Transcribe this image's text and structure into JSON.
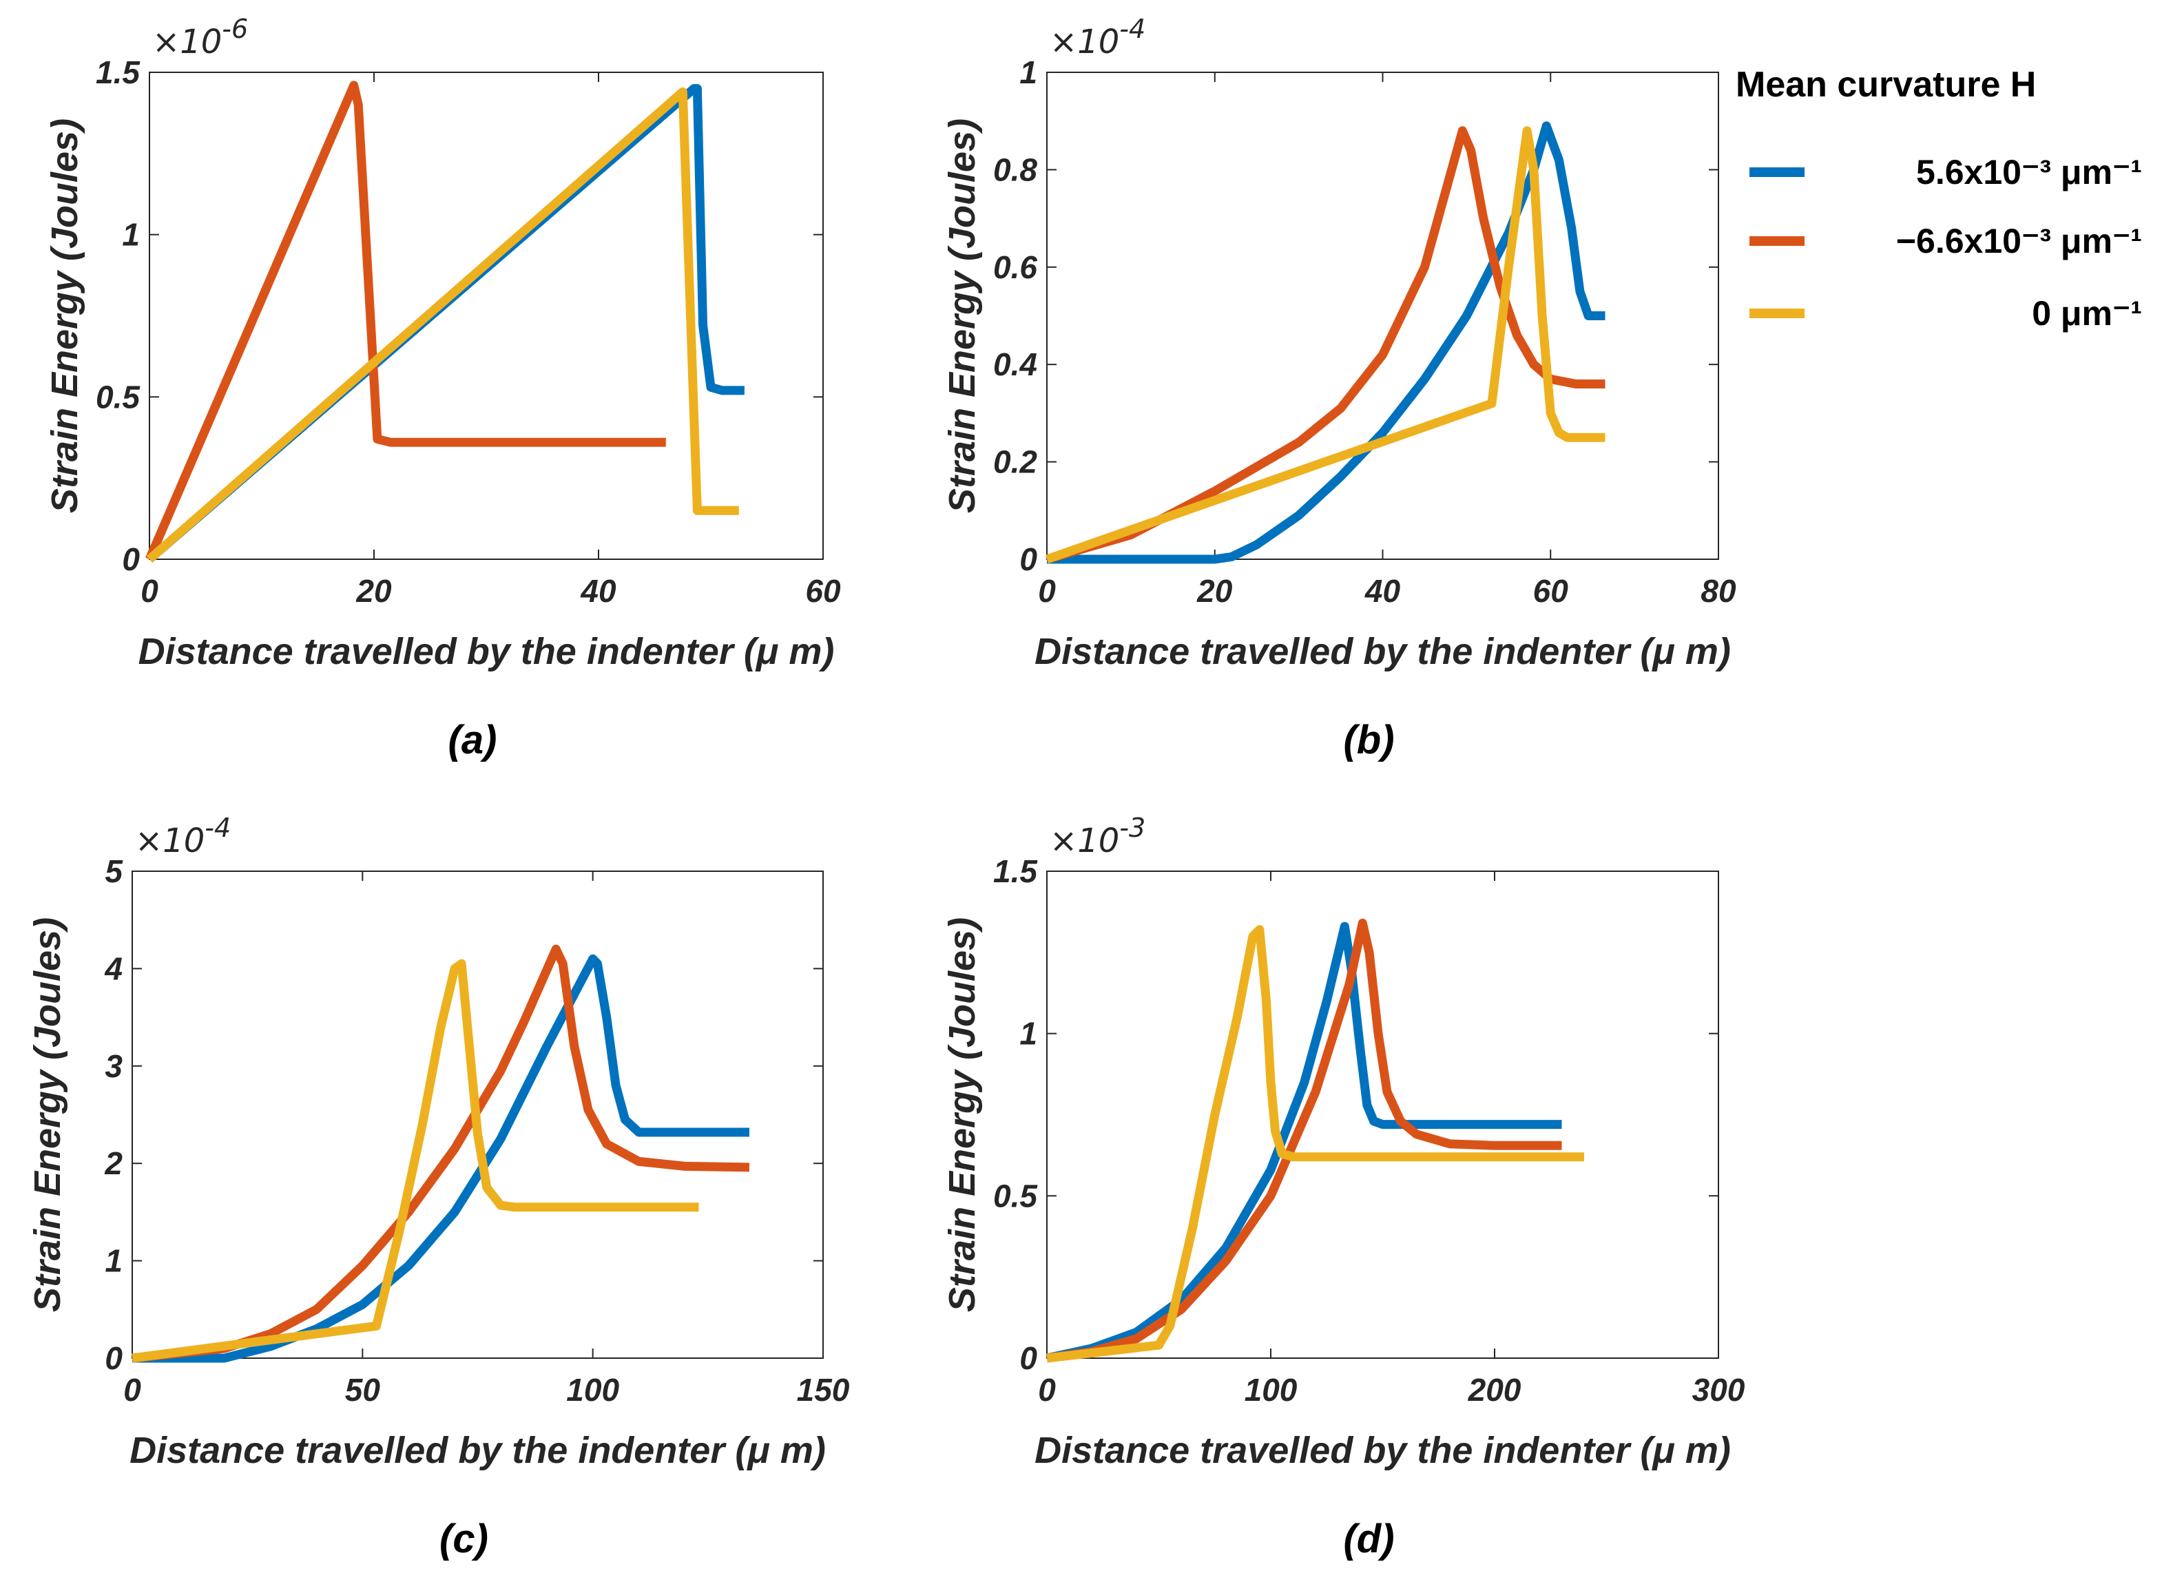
{
  "legend": {
    "title": "Mean curvature H",
    "entries": [
      {
        "label": "5.6x10⁻³ μm⁻¹",
        "color": "#0072BD"
      },
      {
        "label": "−6.6x10⁻³ μm⁻¹",
        "color": "#D95319"
      },
      {
        "label": "0 μm⁻¹",
        "color": "#EDB120"
      }
    ]
  },
  "chart_data": [
    {
      "type": "line",
      "caption": "(a)",
      "xlabel": "Distance travelled by the indenter (μ m)",
      "ylabel": "Strain Energy (Joules)",
      "multiplier": "×10",
      "multiplier_exp": "-6",
      "xlim": [
        0,
        60
      ],
      "ylim": [
        0,
        1.5
      ],
      "xticks": [
        0,
        20,
        40,
        60
      ],
      "yticks": [
        0,
        0.5,
        1,
        1.5
      ],
      "ytick_labels": [
        "0",
        "0.5",
        "1",
        "1.5"
      ],
      "series": [
        {
          "name": "5.6x10⁻³ μm⁻¹",
          "color": "#0072BD",
          "x": [
            0,
            48.5,
            48.8,
            49.3,
            50,
            51,
            53
          ],
          "y": [
            0,
            1.45,
            1.45,
            0.72,
            0.53,
            0.52,
            0.52
          ]
        },
        {
          "name": "−6.6x10⁻³ μm⁻¹",
          "color": "#D95319",
          "x": [
            0,
            18.2,
            18.6,
            20.3,
            21.5,
            46
          ],
          "y": [
            0,
            1.46,
            1.4,
            0.37,
            0.36,
            0.36
          ]
        },
        {
          "name": "0 μm⁻¹",
          "color": "#EDB120",
          "x": [
            0,
            47.5,
            48.5,
            48.8,
            52.5
          ],
          "y": [
            0,
            1.44,
            0.44,
            0.15,
            0.15
          ]
        }
      ]
    },
    {
      "type": "line",
      "caption": "(b)",
      "xlabel": "Distance travelled by the indenter (μ m)",
      "ylabel": "Strain Energy (Joules)",
      "multiplier": "×10",
      "multiplier_exp": "-4",
      "xlim": [
        0,
        80
      ],
      "ylim": [
        0,
        1
      ],
      "xticks": [
        0,
        20,
        40,
        60,
        80
      ],
      "yticks": [
        0,
        0.2,
        0.4,
        0.6,
        0.8,
        1
      ],
      "ytick_labels": [
        "0",
        "0.2",
        "0.4",
        "0.6",
        "0.8",
        "1"
      ],
      "series": [
        {
          "name": "5.6x10⁻³ μm⁻¹",
          "color": "#0072BD",
          "x": [
            0,
            20,
            22,
            25,
            30,
            35,
            40,
            45,
            50,
            55,
            58,
            59.5,
            61,
            62.5,
            63.5,
            64.5,
            66.5
          ],
          "y": [
            0,
            0,
            0.005,
            0.03,
            0.09,
            0.17,
            0.26,
            0.37,
            0.5,
            0.67,
            0.8,
            0.89,
            0.82,
            0.68,
            0.55,
            0.5,
            0.5
          ]
        },
        {
          "name": "−6.6x10⁻³ μm⁻¹",
          "color": "#D95319",
          "x": [
            0,
            10,
            20,
            30,
            35,
            40,
            45,
            49.5,
            50.5,
            52,
            54,
            56,
            58,
            60,
            63,
            66.5
          ],
          "y": [
            0,
            0.05,
            0.14,
            0.24,
            0.31,
            0.42,
            0.6,
            0.88,
            0.84,
            0.7,
            0.56,
            0.46,
            0.4,
            0.37,
            0.36,
            0.36
          ]
        },
        {
          "name": "0 μm⁻¹",
          "color": "#EDB120",
          "x": [
            0,
            53,
            55,
            57.2,
            58,
            59,
            60,
            61,
            62,
            66.5
          ],
          "y": [
            0,
            0.32,
            0.6,
            0.88,
            0.8,
            0.5,
            0.3,
            0.26,
            0.25,
            0.25
          ]
        }
      ]
    },
    {
      "type": "line",
      "caption": "(c)",
      "xlabel": "Distance travelled by the indenter (μ m)",
      "ylabel": "Strain Energy (Joules)",
      "multiplier": "×10",
      "multiplier_exp": "-4",
      "xlim": [
        0,
        150
      ],
      "ylim": [
        0,
        5
      ],
      "xticks": [
        0,
        50,
        100,
        150
      ],
      "yticks": [
        0,
        1,
        2,
        3,
        4,
        5
      ],
      "ytick_labels": [
        "0",
        "1",
        "2",
        "3",
        "4",
        "5"
      ],
      "series": [
        {
          "name": "5.6x10⁻³ μm⁻¹",
          "color": "#0072BD",
          "x": [
            0,
            20,
            30,
            40,
            50,
            60,
            70,
            80,
            90,
            100,
            101,
            103,
            105,
            107,
            110,
            134
          ],
          "y": [
            0,
            0,
            0.12,
            0.3,
            0.55,
            0.95,
            1.5,
            2.25,
            3.2,
            4.1,
            4.05,
            3.5,
            2.8,
            2.45,
            2.32,
            2.32
          ]
        },
        {
          "name": "−6.6x10⁻³ μm⁻¹",
          "color": "#D95319",
          "x": [
            0,
            20,
            30,
            40,
            50,
            60,
            70,
            80,
            85,
            92,
            93.5,
            96,
            99,
            103,
            110,
            120,
            134
          ],
          "y": [
            0,
            0.1,
            0.25,
            0.5,
            0.95,
            1.5,
            2.15,
            2.95,
            3.45,
            4.2,
            4.05,
            3.2,
            2.55,
            2.2,
            2.02,
            1.97,
            1.96
          ]
        },
        {
          "name": "0 μm⁻¹",
          "color": "#EDB120",
          "x": [
            0,
            53,
            58,
            63,
            67,
            70,
            71.5,
            73,
            75,
            77,
            80,
            83,
            123
          ],
          "y": [
            0,
            0.33,
            1.3,
            2.4,
            3.4,
            4.0,
            4.05,
            3.3,
            2.3,
            1.75,
            1.57,
            1.55,
            1.55
          ]
        }
      ]
    },
    {
      "type": "line",
      "caption": "(d)",
      "xlabel": "Distance travelled by the indenter (μ m)",
      "ylabel": "Strain Energy (Joules)",
      "multiplier": "×10",
      "multiplier_exp": "-3",
      "xlim": [
        0,
        300
      ],
      "ylim": [
        0,
        1.5
      ],
      "xticks": [
        0,
        100,
        200,
        300
      ],
      "yticks": [
        0,
        0.5,
        1,
        1.5
      ],
      "ytick_labels": [
        "0",
        "0.5",
        "1",
        "1.5"
      ],
      "series": [
        {
          "name": "5.6x10⁻³ μm⁻¹",
          "color": "#0072BD",
          "x": [
            0,
            20,
            40,
            60,
            80,
            100,
            115,
            125,
            133,
            136,
            140,
            143,
            146,
            150,
            230
          ],
          "y": [
            0,
            0.03,
            0.08,
            0.18,
            0.34,
            0.58,
            0.85,
            1.1,
            1.33,
            1.2,
            0.95,
            0.78,
            0.73,
            0.72,
            0.72
          ]
        },
        {
          "name": "−6.6x10⁻³ μm⁻¹",
          "color": "#D95319",
          "x": [
            0,
            20,
            40,
            60,
            80,
            100,
            120,
            135,
            141,
            144,
            148,
            152,
            158,
            165,
            180,
            200,
            230
          ],
          "y": [
            0,
            0.02,
            0.06,
            0.15,
            0.3,
            0.5,
            0.82,
            1.15,
            1.34,
            1.25,
            1.0,
            0.82,
            0.73,
            0.69,
            0.66,
            0.655,
            0.655
          ]
        },
        {
          "name": "0 μm⁻¹",
          "color": "#EDB120",
          "x": [
            0,
            50,
            55,
            65,
            75,
            85,
            92,
            95,
            98,
            100,
            102,
            105,
            110,
            240
          ],
          "y": [
            0,
            0.04,
            0.1,
            0.4,
            0.75,
            1.05,
            1.3,
            1.32,
            1.1,
            0.85,
            0.7,
            0.63,
            0.62,
            0.62
          ]
        }
      ]
    }
  ]
}
